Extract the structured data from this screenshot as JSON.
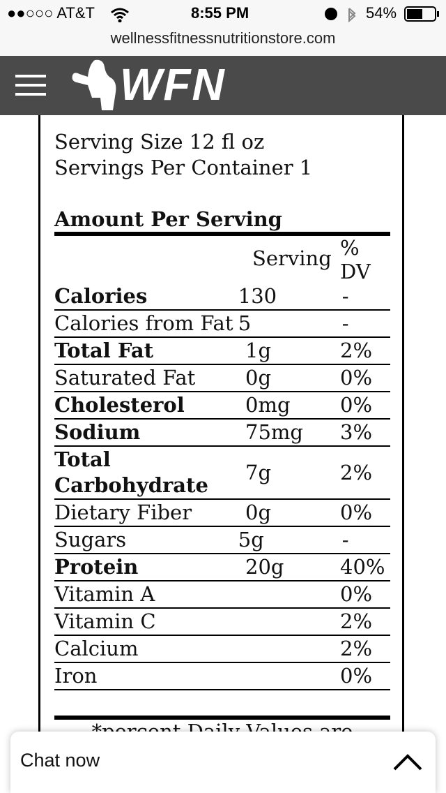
{
  "status_bar": {
    "carrier": "●●○○○ AT&T",
    "time": "8:55 PM",
    "battery": "54%"
  },
  "url": "wellnessfitnessnutritionstore.com",
  "header": {
    "logo": "WFN"
  },
  "label": {
    "serving_size": "Serving Size 12 fl oz",
    "servings_per_container": "Servings Per Container 1",
    "amount_per_serving": "Amount Per Serving",
    "columns": [
      "Serving",
      "% DV"
    ],
    "rows": [
      {
        "name": "Calories",
        "serving": "130",
        "dv": "-",
        "bold": true
      },
      {
        "name": "Calories from Fat",
        "serving": "5",
        "dv": "-",
        "bold": false
      },
      {
        "name": "Total Fat",
        "serving": "1g",
        "dv": "2%",
        "bold": true
      },
      {
        "name": "Saturated Fat",
        "serving": "0g",
        "dv": "0%",
        "bold": false
      },
      {
        "name": "Cholesterol",
        "serving": "0mg",
        "dv": "0%",
        "bold": true
      },
      {
        "name": "Sodium",
        "serving": "75mg",
        "dv": "3%",
        "bold": true
      },
      {
        "name": "Total Carbohydrate",
        "serving": "7g",
        "dv": "2%",
        "bold": true
      },
      {
        "name": "Dietary Fiber",
        "serving": "0g",
        "dv": "0%",
        "bold": false
      },
      {
        "name": "Sugars",
        "serving": "5g",
        "dv": "-",
        "bold": false
      },
      {
        "name": "Protein",
        "serving": "20g",
        "dv": "40%",
        "bold": true
      },
      {
        "name": "Vitamin A",
        "serving": null,
        "dv": "0%",
        "bold": false
      },
      {
        "name": "Vitamin C",
        "serving": null,
        "dv": "2%",
        "bold": false
      },
      {
        "name": "Calcium",
        "serving": null,
        "dv": "2%",
        "bold": false
      },
      {
        "name": "Iron",
        "serving": null,
        "dv": "0%",
        "bold": false
      }
    ],
    "footnote": "*percent Daily Values are"
  },
  "chat": {
    "label": "Chat now"
  }
}
